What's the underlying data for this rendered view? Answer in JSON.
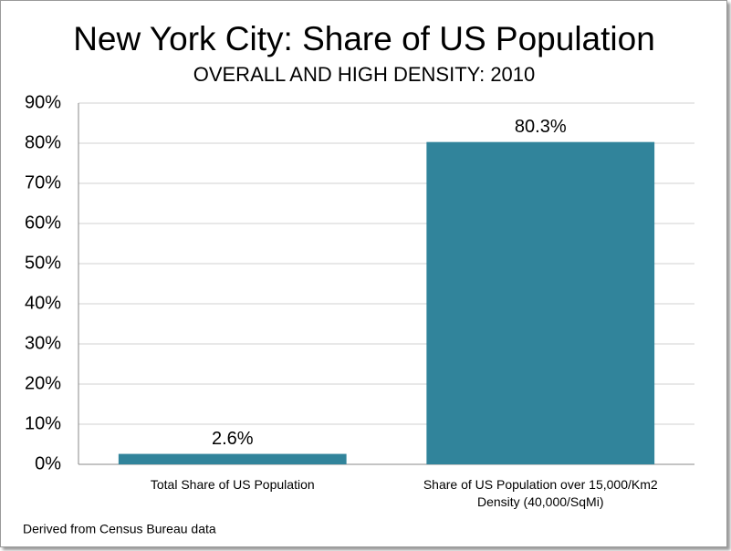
{
  "chart_data": {
    "type": "bar",
    "title": "New York City: Share of US Population",
    "subtitle": "OVERALL AND HIGH DENSITY: 2010",
    "categories": [
      "Total Share of US Population",
      "Share of US Population over 15,000/Km2\nDensity (40,000/SqMi)"
    ],
    "values": [
      2.6,
      80.3
    ],
    "value_labels": [
      "2.6%",
      "80.3%"
    ],
    "color": "#31849b",
    "ylim": [
      0,
      90
    ],
    "yticks": [
      {
        "value": 0,
        "label": "0%"
      },
      {
        "value": 10,
        "label": "10%"
      },
      {
        "value": 20,
        "label": "20%"
      },
      {
        "value": 30,
        "label": "30%"
      },
      {
        "value": 40,
        "label": "40%"
      },
      {
        "value": 50,
        "label": "50%"
      },
      {
        "value": 60,
        "label": "60%"
      },
      {
        "value": 70,
        "label": "70%"
      },
      {
        "value": 80,
        "label": "80%"
      },
      {
        "value": 90,
        "label": "90%"
      }
    ],
    "grid": true,
    "source": "Derived from Census Bureau data"
  }
}
